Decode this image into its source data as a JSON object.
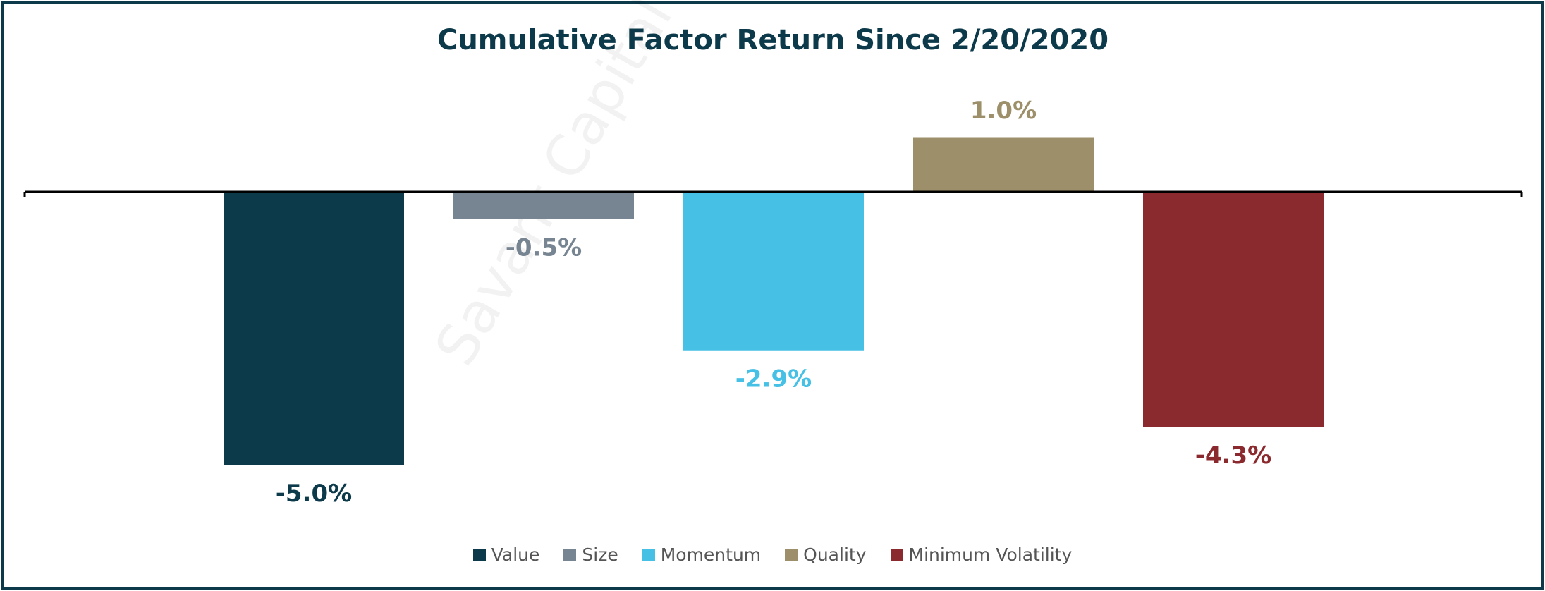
{
  "chart_data": {
    "type": "bar",
    "title": "Cumulative Factor Return Since 2/20/2020",
    "watermark": "Savant Capital",
    "series": [
      {
        "name": "Value",
        "color": "#0c3a4a",
        "values": [
          -5.0
        ],
        "value_labels": [
          "-5.0%"
        ]
      },
      {
        "name": "Size",
        "color": "#778592",
        "values": [
          -0.5
        ],
        "value_labels": [
          "-0.5%"
        ]
      },
      {
        "name": "Momentum",
        "color": "#46c0e4",
        "values": [
          -2.9
        ],
        "value_labels": [
          "-2.9%"
        ]
      },
      {
        "name": "Quality",
        "color": "#9c8f6a",
        "values": [
          1.0
        ],
        "value_labels": [
          "1.0%"
        ]
      },
      {
        "name": "Minimum Volatility",
        "color": "#8b2a2e",
        "values": [
          -4.3
        ],
        "value_labels": [
          "-4.3%"
        ]
      }
    ],
    "legend": "bottom"
  }
}
